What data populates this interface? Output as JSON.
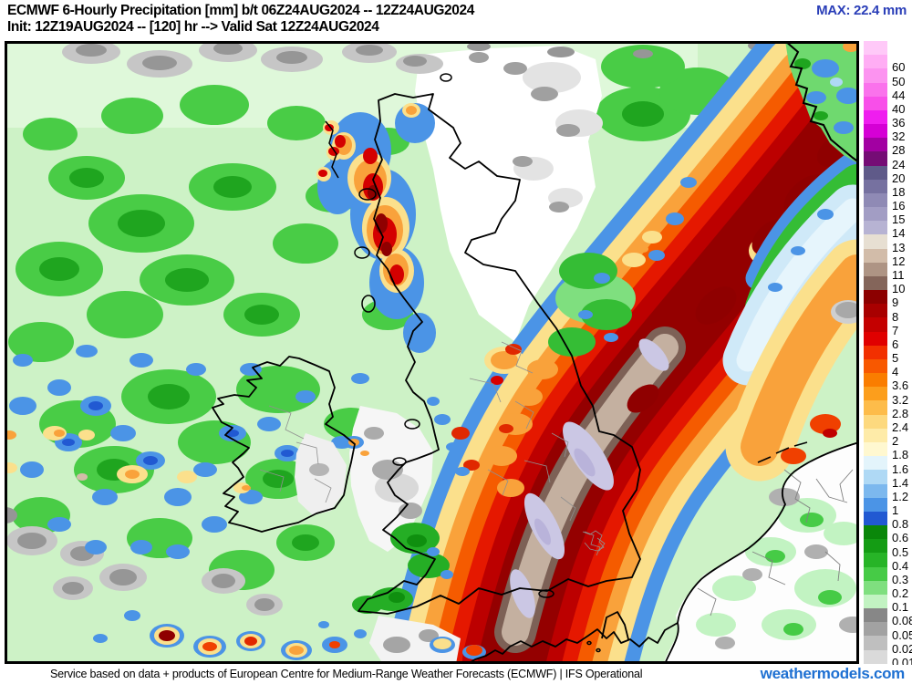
{
  "header": {
    "title_line1": "ECMWF 6-Hourly Precipitation [mm] b/t 06Z24AUG2024 -- 12Z24AUG2024",
    "title_line2": "Init: 12Z19AUG2024 -- [120] hr --> Valid Sat 12Z24AUG2024",
    "max_label": "MAX: 22.4 mm",
    "max_color": "#2A3EB8"
  },
  "map": {
    "description": "ECMWF IFS 6-hourly precipitation forecast map over the British Isles, North Sea and nearby Europe",
    "max_value_mm": 22.4,
    "unit": "mm"
  },
  "legend": {
    "unit": "mm",
    "top_color": "#FFC9F8",
    "entries": [
      {
        "value": "60",
        "color": "#FFADF4"
      },
      {
        "value": "50",
        "color": "#FC93F0"
      },
      {
        "value": "44",
        "color": "#FA72EC"
      },
      {
        "value": "40",
        "color": "#F84FE9"
      },
      {
        "value": "36",
        "color": "#EF1DEF"
      },
      {
        "value": "32",
        "color": "#D500D5"
      },
      {
        "value": "28",
        "color": "#A200A2"
      },
      {
        "value": "24",
        "color": "#750C75"
      },
      {
        "value": "20",
        "color": "#5F5A89"
      },
      {
        "value": "18",
        "color": "#7671A0"
      },
      {
        "value": "16",
        "color": "#8F8AB5"
      },
      {
        "value": "15",
        "color": "#A29DC4"
      },
      {
        "value": "14",
        "color": "#B7B3D3"
      },
      {
        "value": "13",
        "color": "#E7DFD2"
      },
      {
        "value": "12",
        "color": "#D2BCA9"
      },
      {
        "value": "11",
        "color": "#AE9484"
      },
      {
        "value": "10",
        "color": "#84655A"
      },
      {
        "value": "9",
        "color": "#8C0000"
      },
      {
        "value": "8",
        "color": "#A80000"
      },
      {
        "value": "7",
        "color": "#C40000"
      },
      {
        "value": "6",
        "color": "#E00000"
      },
      {
        "value": "5",
        "color": "#F23000"
      },
      {
        "value": "4",
        "color": "#F85800"
      },
      {
        "value": "3.6",
        "color": "#FA7D00"
      },
      {
        "value": "3.2",
        "color": "#FC9E1C"
      },
      {
        "value": "2.8",
        "color": "#FDBC4A"
      },
      {
        "value": "2.4",
        "color": "#FDD97E"
      },
      {
        "value": "2",
        "color": "#FEEBA8"
      },
      {
        "value": "1.8",
        "color": "#FFF8D0"
      },
      {
        "value": "1.6",
        "color": "#E3F4FB"
      },
      {
        "value": "1.4",
        "color": "#AFD9F5"
      },
      {
        "value": "1.2",
        "color": "#7CB8EE"
      },
      {
        "value": "1",
        "color": "#4B94E6"
      },
      {
        "value": "0.8",
        "color": "#2159D2"
      },
      {
        "value": "0.6",
        "color": "#0A870A"
      },
      {
        "value": "0.5",
        "color": "#149C14"
      },
      {
        "value": "0.4",
        "color": "#27B427"
      },
      {
        "value": "0.3",
        "color": "#46CB46"
      },
      {
        "value": "0.2",
        "color": "#7FDF7F"
      },
      {
        "value": "0.1",
        "color": "#C2F3C2"
      },
      {
        "value": "0.08",
        "color": "#878787"
      },
      {
        "value": "0.05",
        "color": "#A2A2A2"
      },
      {
        "value": "0.02",
        "color": "#BFBFBF"
      },
      {
        "value": "0.01",
        "color": "#DADADA"
      }
    ]
  },
  "footer": {
    "attribution": "Service based on data + products of European Centre for Medium-Range Weather Forecasts (ECMWF) | IFS Operational",
    "brand": "weathermodels.com",
    "brand_color": "#1E70D2"
  }
}
